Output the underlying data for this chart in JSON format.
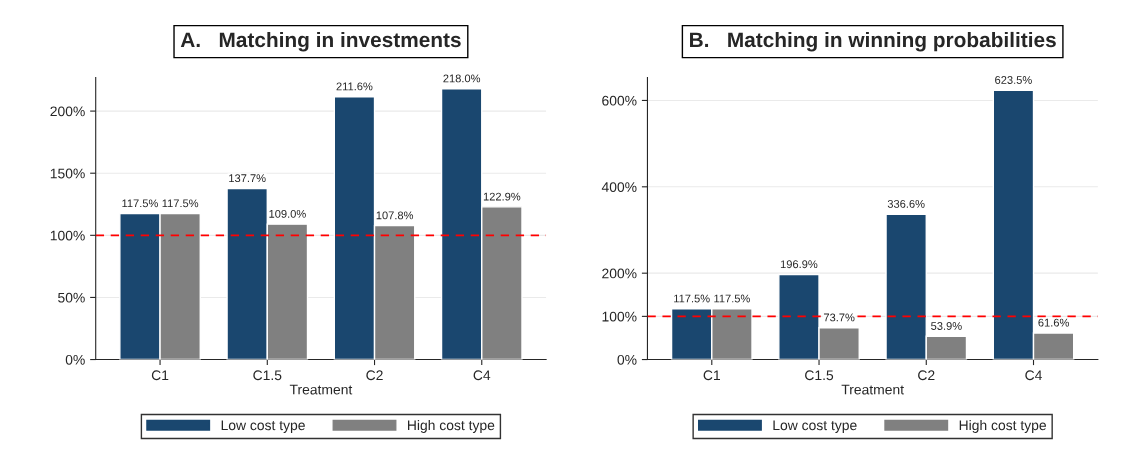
{
  "chart_data": [
    {
      "type": "bar",
      "title": "A.   Matching in investments",
      "xlabel": "Treatment",
      "categories": [
        "C1",
        "C1.5",
        "C2",
        "C4"
      ],
      "series": [
        {
          "name": "Low cost type",
          "color": "#1a476f",
          "values": [
            117.5,
            137.7,
            211.6,
            218.0
          ],
          "value_labels": [
            "117.5%",
            "137.7%",
            "211.6%",
            "218.0%"
          ]
        },
        {
          "name": "High cost type",
          "color": "#808080",
          "values": [
            117.5,
            109.0,
            107.8,
            122.9
          ],
          "value_labels": [
            "117.5%",
            "109.0%",
            "107.8%",
            "122.9%"
          ]
        }
      ],
      "ylim": [
        0,
        227
      ],
      "yticks": [
        {
          "value": 0,
          "label": "0%"
        },
        {
          "value": 50,
          "label": "50%"
        },
        {
          "value": 100,
          "label": "100%"
        },
        {
          "value": 150,
          "label": "150%"
        },
        {
          "value": 200,
          "label": "200%"
        }
      ],
      "ref_lines": [
        {
          "axis": "y",
          "value": 100,
          "color": "#ff0000",
          "line_style": "dashed"
        }
      ],
      "grid": "y",
      "legend": "bottom"
    },
    {
      "type": "bar",
      "title": "B.   Matching in winning probabilities",
      "xlabel": "Treatment",
      "categories": [
        "C1",
        "C1.5",
        "C2",
        "C4"
      ],
      "series": [
        {
          "name": "Low cost type",
          "color": "#1a476f",
          "values": [
            117.5,
            196.9,
            336.6,
            623.5
          ],
          "value_labels": [
            "117.5%",
            "196.9%",
            "336.6%",
            "623.5%"
          ]
        },
        {
          "name": "High cost type",
          "color": "#808080",
          "values": [
            117.5,
            73.7,
            53.9,
            61.6
          ],
          "value_labels": [
            "117.5%",
            "73.7%",
            "53.9%",
            "61.6%"
          ]
        }
      ],
      "ylim": [
        0,
        653
      ],
      "yticks": [
        {
          "value": 0,
          "label": "0%"
        },
        {
          "value": 100,
          "label": "100%"
        },
        {
          "value": 200,
          "label": "200%"
        },
        {
          "value": 400,
          "label": "400%"
        },
        {
          "value": 600,
          "label": "600%"
        }
      ],
      "ref_lines": [
        {
          "axis": "y",
          "value": 100,
          "color": "#ff0000",
          "line_style": "dashed"
        }
      ],
      "grid": "y",
      "legend": "bottom"
    }
  ]
}
